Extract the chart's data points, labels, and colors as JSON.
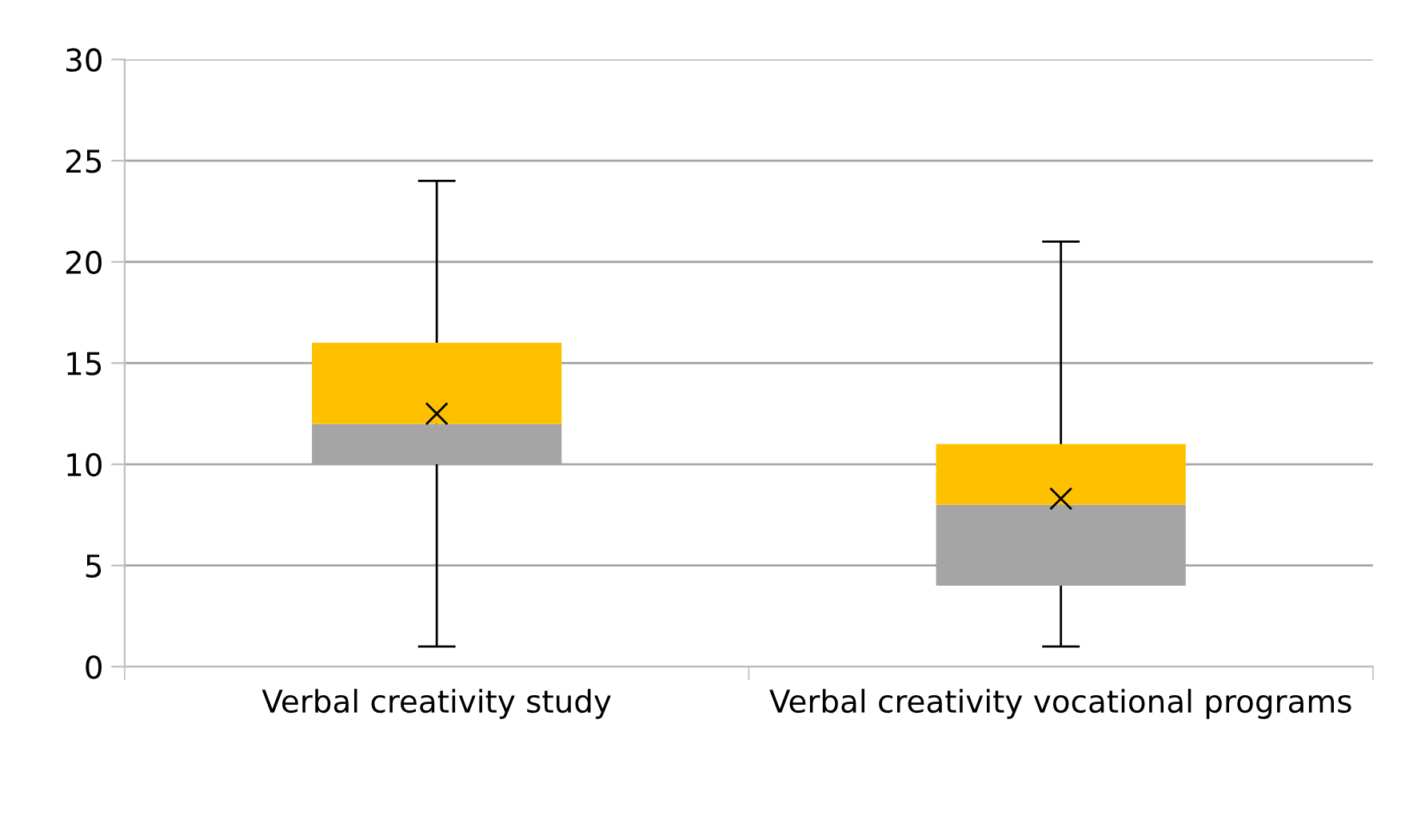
{
  "chart_data": {
    "type": "box",
    "categories": [
      "Verbal creativity study",
      "Verbal creativity vocational programs"
    ],
    "series": [
      {
        "color": "#ffc000",
        "colors": [
          "#a5a5a5",
          "#a5a5a5"
        ],
        "boxes": [
          {
            "low": 1,
            "q1": 10,
            "median": 12,
            "q3": 16,
            "high": 24,
            "mean": 12.5
          },
          {
            "low": 1,
            "q1": 4,
            "median": 8,
            "q3": 11,
            "high": 21,
            "mean": 8.3
          }
        ]
      }
    ],
    "ylim": [
      0,
      30
    ],
    "yticks": [
      0,
      5,
      10,
      15,
      20,
      25,
      30
    ],
    "grid": "y",
    "marker": "cross"
  }
}
